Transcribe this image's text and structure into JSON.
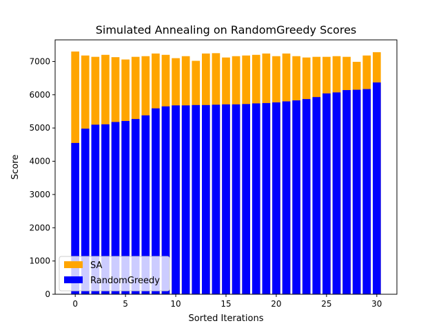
{
  "chart_data": {
    "type": "bar",
    "title": "Simulated Annealing on RandomGreedy Scores",
    "xlabel": "Sorted Iterations",
    "ylabel": "Score",
    "x": [
      0,
      1,
      2,
      3,
      4,
      5,
      6,
      7,
      8,
      9,
      10,
      11,
      12,
      13,
      14,
      15,
      16,
      17,
      18,
      19,
      20,
      21,
      22,
      23,
      24,
      25,
      26,
      27,
      28,
      29,
      30
    ],
    "xlim": [
      -2,
      32
    ],
    "ylim": [
      0,
      7650
    ],
    "xticks": [
      0,
      5,
      10,
      15,
      20,
      25,
      30
    ],
    "yticks": [
      0,
      1000,
      2000,
      3000,
      4000,
      5000,
      6000,
      7000
    ],
    "series": [
      {
        "name": "SA",
        "color": "#ffa500",
        "values": [
          7300,
          7180,
          7140,
          7200,
          7130,
          7060,
          7140,
          7160,
          7240,
          7200,
          7100,
          7160,
          7020,
          7240,
          7250,
          7120,
          7160,
          7180,
          7200,
          7240,
          7160,
          7240,
          7160,
          7120,
          7140,
          7140,
          7160,
          7140,
          6990,
          7180,
          7280
        ]
      },
      {
        "name": "RandomGreedy",
        "color": "#0000ff",
        "values": [
          4550,
          4980,
          5100,
          5110,
          5180,
          5210,
          5270,
          5380,
          5590,
          5650,
          5680,
          5680,
          5690,
          5690,
          5700,
          5710,
          5710,
          5720,
          5740,
          5750,
          5770,
          5800,
          5830,
          5870,
          5930,
          6040,
          6070,
          6140,
          6150,
          6170,
          6370
        ]
      }
    ],
    "legend": {
      "placement": "lower-left",
      "entries": [
        {
          "label": "SA",
          "color": "#ffa500"
        },
        {
          "label": "RandomGreedy",
          "color": "#0000ff"
        }
      ]
    },
    "grid": false
  }
}
